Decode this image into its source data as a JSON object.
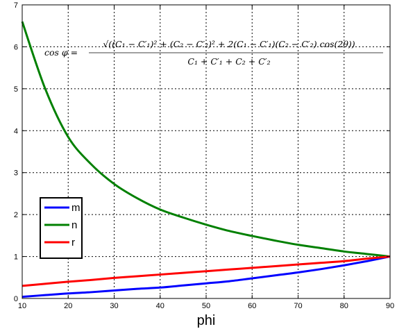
{
  "chart_data": {
    "type": "line",
    "xlabel": "phi",
    "ylabel": "",
    "xlim": [
      10,
      90
    ],
    "ylim": [
      0,
      7
    ],
    "xticks": [
      "10",
      "20",
      "30",
      "40",
      "50",
      "60",
      "70",
      "80",
      "90"
    ],
    "yticks": [
      "0",
      "1",
      "2",
      "3",
      "4",
      "5",
      "6",
      "7"
    ],
    "grid": true,
    "legend_position": "bottom-left",
    "annotation": {
      "lhs": "cos φ =",
      "numerator": "√((C₁ − C′₁)² + (C₂ − C′₂)² + 2(C₁ − C′₁)(C₂ − C′₂) cos(2θ))",
      "denominator": "C₁ + C′₁ + C₂ + C′₂"
    },
    "x": [
      10,
      15,
      20,
      25,
      30,
      35,
      40,
      45,
      50,
      55,
      60,
      65,
      70,
      75,
      80,
      85,
      90
    ],
    "series": [
      {
        "name": "m",
        "color": "#0000ff",
        "values": [
          0.04,
          0.08,
          0.12,
          0.15,
          0.19,
          0.23,
          0.26,
          0.31,
          0.36,
          0.41,
          0.48,
          0.55,
          0.62,
          0.7,
          0.79,
          0.89,
          1.0
        ]
      },
      {
        "name": "n",
        "color": "#008000",
        "values": [
          6.6,
          5.0,
          3.85,
          3.2,
          2.73,
          2.39,
          2.12,
          1.93,
          1.76,
          1.61,
          1.49,
          1.38,
          1.28,
          1.2,
          1.12,
          1.06,
          1.0
        ]
      },
      {
        "name": "r",
        "color": "#ff0000",
        "values": [
          0.3,
          0.35,
          0.4,
          0.44,
          0.49,
          0.53,
          0.57,
          0.61,
          0.65,
          0.69,
          0.73,
          0.77,
          0.81,
          0.85,
          0.89,
          0.95,
          1.0
        ]
      }
    ]
  }
}
